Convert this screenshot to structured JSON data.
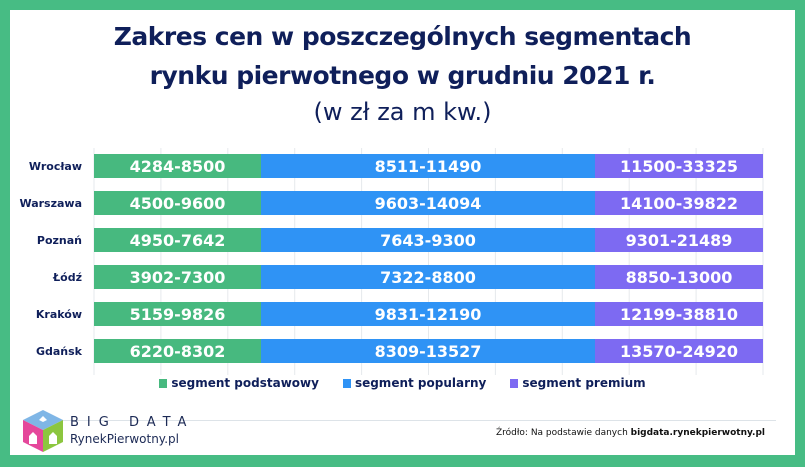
{
  "chart_data": {
    "type": "bar",
    "title": "Zakres cen w poszczególnych segmentach rynku pierwotnego w grudniu 2021 r.",
    "title_line1": "Zakres cen w poszczególnych segmentach",
    "title_line2": "rynku pierwotnego w grudniu 2021 r.",
    "subtitle": "(w zł za m kw.)",
    "orientation": "horizontal",
    "stacked": true,
    "grid": true,
    "legend_placement": "bottom",
    "categories": [
      "Wrocław",
      "Warszawa",
      "Poznań",
      "Łódź",
      "Kraków",
      "Gdańsk"
    ],
    "series": [
      {
        "name": "segment podstawowy",
        "color": "#47b97f",
        "labels": [
          "4284-8500",
          "4500-9600",
          "4950-7642",
          "3902-7300",
          "5159-9826",
          "6220-8302"
        ]
      },
      {
        "name": "segment popularny",
        "color": "#2f93f5",
        "labels": [
          "8511-11490",
          "9603-14094",
          "7643-9300",
          "7322-8800",
          "9831-12190",
          "8309-13527"
        ]
      },
      {
        "name": "segment premium",
        "color": "#7d6af2",
        "labels": [
          "11500-33325",
          "14100-39822",
          "9301-21489",
          "8850-13000",
          "12199-38810",
          "13570-24920"
        ]
      }
    ]
  },
  "footer": {
    "logo_line1": "BIG DATA",
    "logo_line2": "RynekPierwotny.pl",
    "source_prefix": "Źródło: Na podstawie danych ",
    "source_bold": "bigdata.rynekpierwotny.pl"
  },
  "colors": {
    "frame": "#47bc84",
    "text": "#0f1f5a"
  }
}
